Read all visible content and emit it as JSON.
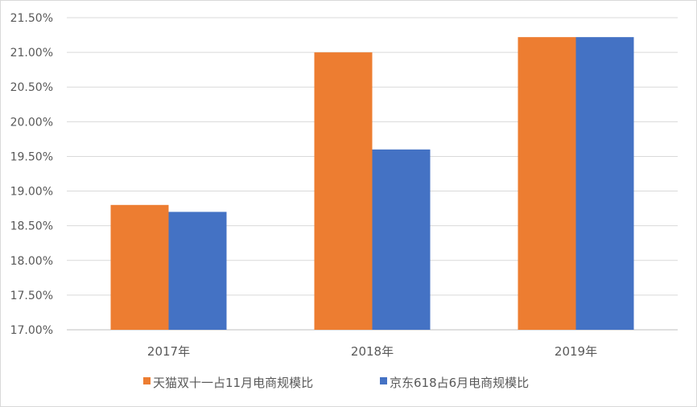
{
  "chart_data": {
    "type": "bar",
    "categories": [
      "2017年",
      "2018年",
      "2019年"
    ],
    "series": [
      {
        "name": "天猫双十一占11月电商规模比",
        "values": [
          18.8,
          21.0,
          21.22
        ],
        "color": "#ED7D31"
      },
      {
        "name": "京东618占6月电商规模比",
        "values": [
          18.7,
          19.6,
          21.22
        ],
        "color": "#4472C4"
      }
    ],
    "ylim": [
      17.0,
      21.5
    ],
    "yticks": [
      "17.00%",
      "17.50%",
      "18.00%",
      "18.50%",
      "19.00%",
      "19.50%",
      "20.00%",
      "20.50%",
      "21.00%",
      "21.50%"
    ],
    "ytick_values": [
      17.0,
      17.5,
      18.0,
      18.5,
      19.0,
      19.5,
      20.0,
      20.5,
      21.0,
      21.5
    ],
    "grid": true,
    "legend_position": "bottom",
    "title": "",
    "xlabel": "",
    "ylabel": ""
  }
}
